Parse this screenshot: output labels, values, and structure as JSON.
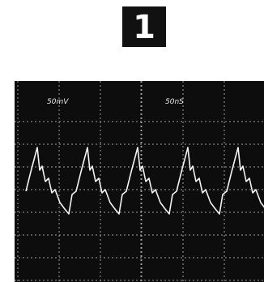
{
  "badge": "1",
  "screen": {
    "volts_label": "50mV",
    "time_label": "50nS"
  }
}
